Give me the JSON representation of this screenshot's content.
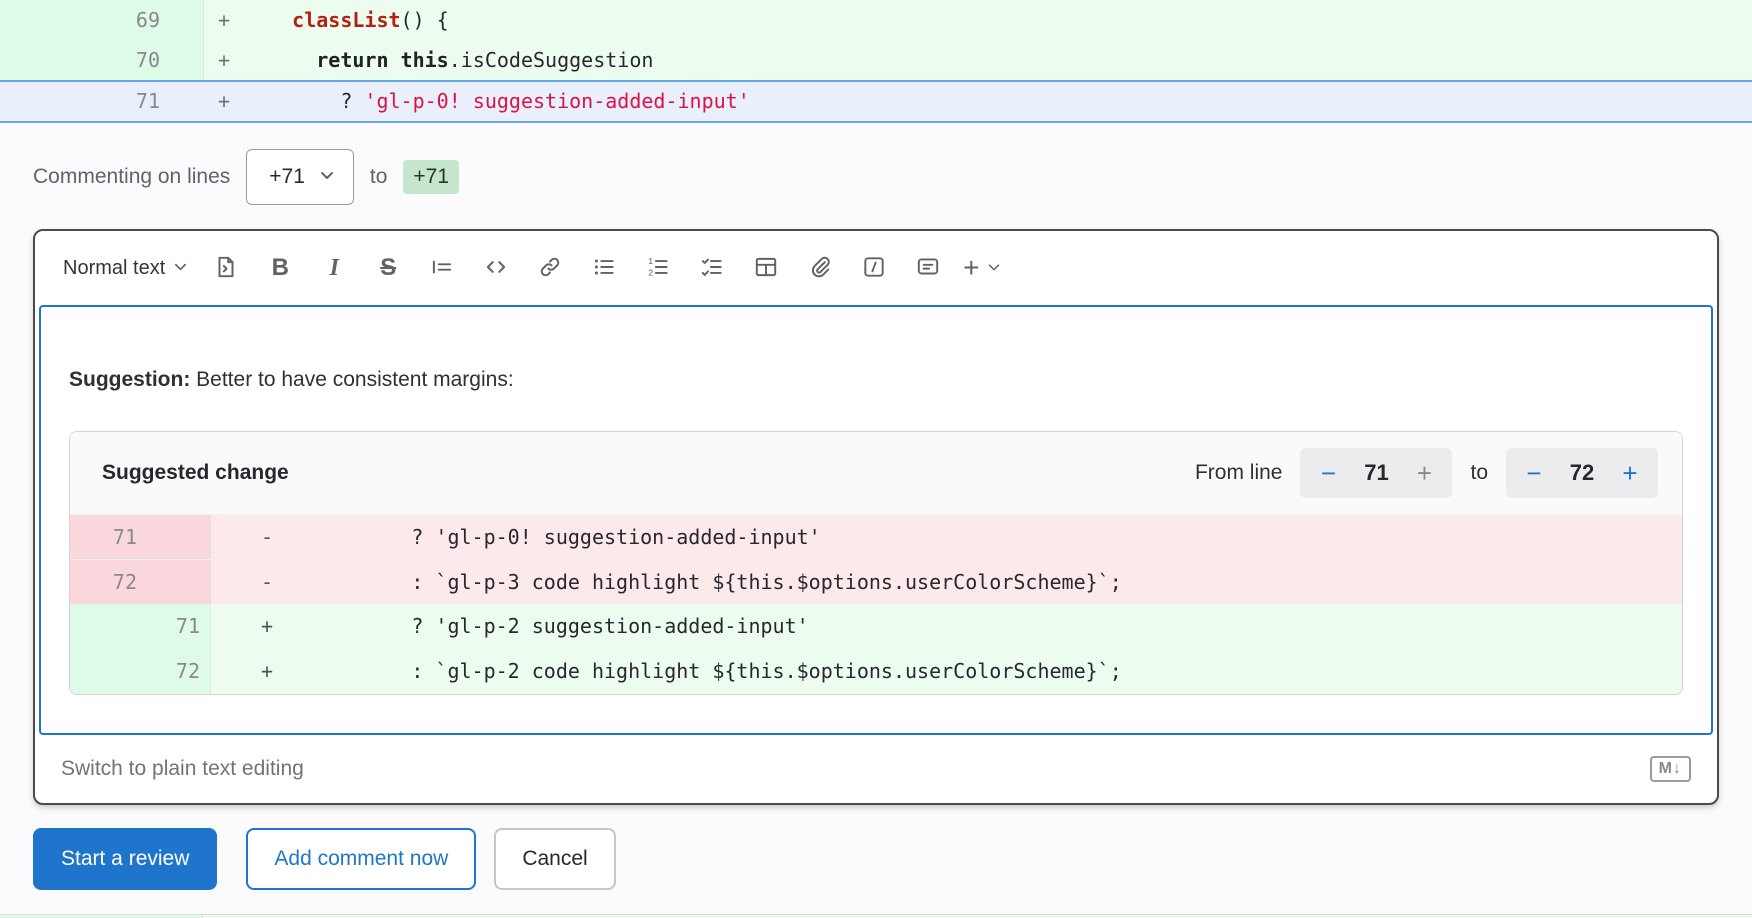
{
  "top_diff": {
    "rows": [
      {
        "line": "69",
        "sign": "+",
        "kind": "added",
        "code": [
          {
            "t": "    ",
            "cls": "plain"
          },
          {
            "t": "classList",
            "cls": "func"
          },
          {
            "t": "() {",
            "cls": "plain"
          }
        ]
      },
      {
        "line": "70",
        "sign": "+",
        "kind": "added",
        "code": [
          {
            "t": "      ",
            "cls": "plain"
          },
          {
            "t": "return",
            "cls": "kw"
          },
          {
            "t": " ",
            "cls": "plain"
          },
          {
            "t": "this",
            "cls": "kw"
          },
          {
            "t": ".isCodeSuggestion",
            "cls": "plain"
          }
        ]
      },
      {
        "line": "71",
        "sign": "+",
        "kind": "selected",
        "code": [
          {
            "t": "        ? ",
            "cls": "plain"
          },
          {
            "t": "'gl-p-0! suggestion-added-input'",
            "cls": "string"
          }
        ]
      }
    ]
  },
  "commenting": {
    "label": "Commenting on lines",
    "line_start": "+71",
    "to_label": "to",
    "line_end": "+71"
  },
  "toolbar": {
    "text_style": "Normal text",
    "bold_glyph": "B",
    "italic_glyph": "I",
    "strike_glyph": "S",
    "plus_glyph": "+"
  },
  "suggestion": {
    "prefix": "Suggestion:",
    "text": " Better to have consistent margins:"
  },
  "suggestion_widget": {
    "title": "Suggested change",
    "from_line_label": "From line",
    "from_value": "71",
    "to_label": "to",
    "to_value": "72",
    "minus_glyph": "−",
    "plus_glyph": "+",
    "diff_rows": [
      {
        "old": "71",
        "new": "",
        "sign": "-",
        "kind": "removed",
        "code": "        ? 'gl-p-0! suggestion-added-input'"
      },
      {
        "old": "72",
        "new": "",
        "sign": "-",
        "kind": "removed",
        "code": "        : `gl-p-3 code highlight ${this.$options.userColorScheme}`;"
      },
      {
        "old": "",
        "new": "71",
        "sign": "+",
        "kind": "added",
        "code": "        ? 'gl-p-2 suggestion-added-input'"
      },
      {
        "old": "",
        "new": "72",
        "sign": "+",
        "kind": "added",
        "code": "        : `gl-p-2 code highlight ${this.$options.userColorScheme}`;"
      }
    ]
  },
  "footer": {
    "switch_label": "Switch to plain text editing",
    "markdown_glyph": "M↓"
  },
  "actions": {
    "start_review": "Start a review",
    "add_comment": "Add comment now",
    "cancel": "Cancel"
  },
  "colors": {
    "primary_blue": "#1f75cb",
    "selected_line_border": "#63a6e9",
    "added_line_bg": "#ecfdf0",
    "added_gutter_bg": "#ddfbe6",
    "removed_line_bg": "#fbe9eb",
    "removed_gutter_bg": "#f9d7dc",
    "badge_green_bg": "#c3e6cd",
    "string_red": "#dd1144"
  }
}
